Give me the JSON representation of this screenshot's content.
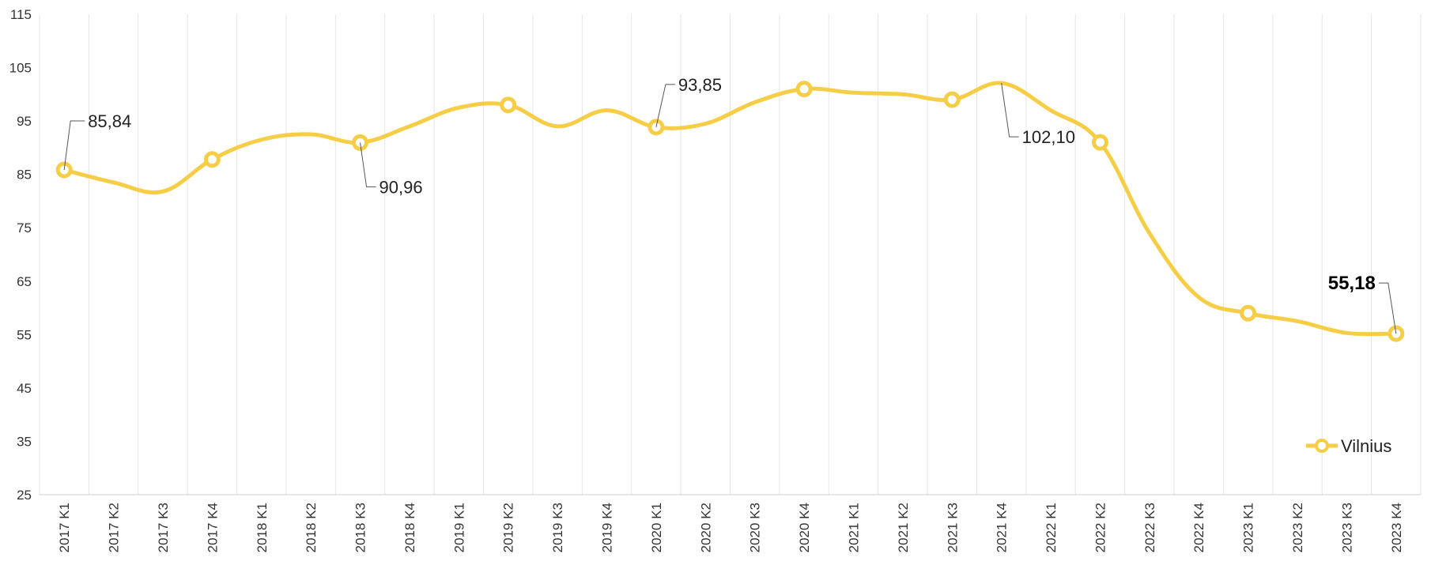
{
  "chart_data": {
    "type": "line",
    "categories": [
      "2017 K1",
      "2017 K2",
      "2017 K3",
      "2017 K4",
      "2018 K1",
      "2018 K2",
      "2018 K3",
      "2018 K4",
      "2019 K1",
      "2019 K2",
      "2019 K3",
      "2019 K4",
      "2020 K1",
      "2020 K2",
      "2020 K3",
      "2020 K4",
      "2021 K1",
      "2021 K2",
      "2021 K3",
      "2021 K4",
      "2022 K1",
      "2022 K2",
      "2022 K3",
      "2022 K4",
      "2023 K1",
      "2023 K2",
      "2023 K3",
      "2023 K4"
    ],
    "series": [
      {
        "name": "Vilnius",
        "color": "#F5CD47",
        "values": [
          85.84,
          83.5,
          81.8,
          87.8,
          91.5,
          92.5,
          90.96,
          94,
          97.5,
          98,
          94,
          97,
          93.85,
          94.5,
          98.5,
          101,
          100.3,
          100,
          99,
          102.1,
          97,
          91,
          74,
          62,
          59,
          57.5,
          55.3,
          55.18
        ],
        "markers": [
          "2017 K1",
          "2017 K4",
          "2018 K3",
          "2019 K2",
          "2020 K1",
          "2020 K4",
          "2021 K3",
          "2022 K2",
          "2023 K1",
          "2023 K4"
        ]
      }
    ],
    "ylim": [
      25,
      115
    ],
    "yticks": [
      "25",
      "35",
      "45",
      "55",
      "65",
      "75",
      "85",
      "95",
      "105",
      "115"
    ],
    "grid": "vertical",
    "legend": "bottom-right",
    "annotations": [
      {
        "category": "2017 K1",
        "text": "85,84"
      },
      {
        "category": "2018 K3",
        "text": "90,96"
      },
      {
        "category": "2020 K1",
        "text": "93,85"
      },
      {
        "category": "2021 K4",
        "text": "102,10"
      },
      {
        "category": "2023 K4",
        "text": "55,18",
        "bold": true
      }
    ]
  }
}
